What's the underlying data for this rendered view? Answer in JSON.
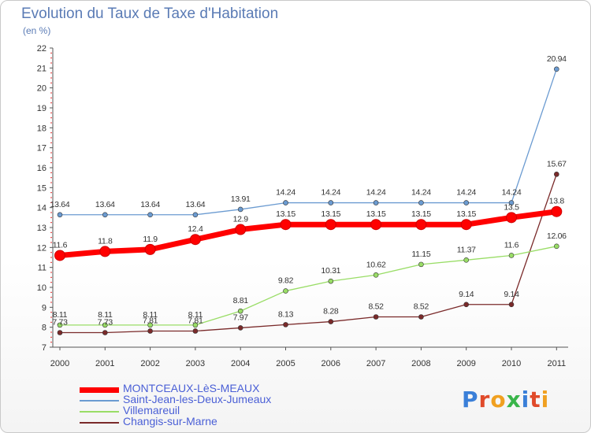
{
  "header": {
    "title": "Evolution du Taux de Taxe d'Habitation",
    "subtitle": "(en %)"
  },
  "brand": {
    "text": "Proxiti",
    "colors": [
      "#3a7fd8",
      "#e04a2a",
      "#f0a020",
      "#39b54a",
      "#3a7fd8",
      "#e04a2a",
      "#f0a020"
    ]
  },
  "chart_data": {
    "type": "line",
    "title": "Evolution du Taux de Taxe d'Habitation",
    "subtitle": "(en %)",
    "x": [
      "2000",
      "2001",
      "2002",
      "2003",
      "2004",
      "2005",
      "2006",
      "2007",
      "2008",
      "2009",
      "2010",
      "2011"
    ],
    "ylim": [
      7,
      22
    ],
    "yticks": [
      7,
      8,
      9,
      10,
      11,
      12,
      13,
      14,
      15,
      16,
      17,
      18,
      19,
      20,
      21,
      22
    ],
    "grid": false,
    "legend": "bottom-left",
    "series": [
      {
        "name": "MONTCEAUX-LèS-MEAUX",
        "color": "#ff0000",
        "values": [
          11.6,
          11.8,
          11.9,
          12.4,
          12.9,
          13.15,
          13.15,
          13.15,
          13.15,
          13.15,
          13.5,
          13.8
        ],
        "labels": [
          "11.6",
          "11.8",
          "11.9",
          "12.4",
          "12.9",
          "13.15",
          "13.15",
          "13.15",
          "13.15",
          "13.15",
          "13.5",
          "13.8"
        ]
      },
      {
        "name": "Saint-Jean-les-Deux-Jumeaux",
        "color": "#6b9bd1",
        "values": [
          13.64,
          13.64,
          13.64,
          13.64,
          13.91,
          14.24,
          14.24,
          14.24,
          14.24,
          14.24,
          14.24,
          20.94
        ],
        "labels": [
          "13.64",
          "13.64",
          "13.64",
          "13.64",
          "13.91",
          "14.24",
          "14.24",
          "14.24",
          "14.24",
          "14.24",
          "14.24",
          "20.94"
        ]
      },
      {
        "name": "Villemareuil",
        "color": "#99dd66",
        "values": [
          8.11,
          8.11,
          8.11,
          8.11,
          8.81,
          9.82,
          10.31,
          10.62,
          11.15,
          11.37,
          11.6,
          12.06
        ],
        "labels": [
          "8.11",
          "8.11",
          "8.11",
          "8.11",
          "8.81",
          "9.82",
          "10.31",
          "10.62",
          "11.15",
          "11.37",
          "11.6",
          "12.06"
        ]
      },
      {
        "name": "Changis-sur-Marne",
        "color": "#7a2a2a",
        "values": [
          7.73,
          7.73,
          7.81,
          7.81,
          7.97,
          8.13,
          8.28,
          8.52,
          8.52,
          9.14,
          9.14,
          15.67
        ],
        "labels": [
          "7.73",
          "7.73",
          "7.81",
          "7.81",
          "7.97",
          "8.13",
          "8.28",
          "8.52",
          "8.52",
          "9.14",
          "9.14",
          "15.67"
        ]
      }
    ]
  }
}
